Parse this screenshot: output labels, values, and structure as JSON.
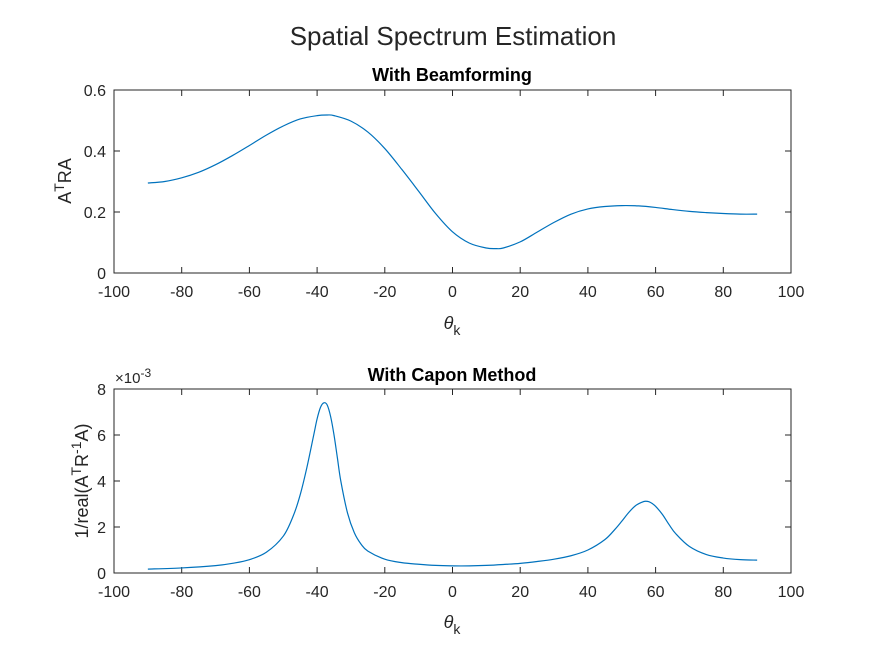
{
  "figure": {
    "title": "Spatial Spectrum Estimation"
  },
  "chart_data": [
    {
      "type": "line",
      "title": "With Beamforming",
      "xlabel": "θ",
      "xlabel_sub": "k",
      "ylabel": "A",
      "ylabel_sup": "T",
      "ylabel_tail": "RA",
      "xlim": [
        -100,
        100
      ],
      "ylim": [
        0,
        0.6
      ],
      "xticks": [
        "-100",
        "-80",
        "-60",
        "-40",
        "-20",
        "0",
        "20",
        "40",
        "60",
        "80",
        "100"
      ],
      "yticks": [
        "0",
        "0.2",
        "0.4",
        "0.6"
      ],
      "ytick_values": [
        0,
        0.2,
        0.4,
        0.6
      ],
      "grid": false,
      "color": "#0072BD",
      "x": [
        -90,
        -85,
        -80,
        -75,
        -70,
        -65,
        -60,
        -55,
        -50,
        -45,
        -40,
        -37,
        -35,
        -30,
        -25,
        -20,
        -15,
        -10,
        -5,
        0,
        5,
        10,
        13,
        15,
        20,
        25,
        30,
        35,
        40,
        45,
        50,
        55,
        60,
        65,
        70,
        75,
        80,
        85,
        90
      ],
      "y": [
        0.295,
        0.3,
        0.312,
        0.33,
        0.355,
        0.385,
        0.418,
        0.452,
        0.482,
        0.505,
        0.516,
        0.518,
        0.516,
        0.498,
        0.462,
        0.408,
        0.34,
        0.268,
        0.195,
        0.135,
        0.098,
        0.082,
        0.08,
        0.082,
        0.102,
        0.134,
        0.166,
        0.193,
        0.21,
        0.218,
        0.221,
        0.22,
        0.215,
        0.208,
        0.202,
        0.198,
        0.195,
        0.193,
        0.193
      ]
    },
    {
      "type": "line",
      "title": "With Capon Method",
      "xlabel": "θ",
      "xlabel_sub": "k",
      "ylabel": "1/real(A",
      "ylabel_sup1": "T",
      "ylabel_mid": "R",
      "ylabel_sup2": "-1",
      "ylabel_tail": "A)",
      "exponent_base": "×10",
      "exponent": "-3",
      "xlim": [
        -100,
        100
      ],
      "ylim": [
        0,
        8
      ],
      "xticks": [
        "-100",
        "-80",
        "-60",
        "-40",
        "-20",
        "0",
        "20",
        "40",
        "60",
        "80",
        "100"
      ],
      "yticks": [
        "0",
        "2",
        "4",
        "6",
        "8"
      ],
      "ytick_values": [
        0,
        2,
        4,
        6,
        8
      ],
      "grid": false,
      "color": "#0072BD",
      "x": [
        -90,
        -80,
        -70,
        -65,
        -60,
        -55,
        -50,
        -47,
        -45,
        -43,
        -41,
        -40,
        -39,
        -38,
        -37,
        -36,
        -35,
        -34,
        -33,
        -31,
        -29,
        -27,
        -25,
        -20,
        -15,
        -10,
        -5,
        0,
        5,
        10,
        15,
        20,
        25,
        30,
        35,
        40,
        45,
        48,
        50,
        52,
        54,
        56,
        57,
        58,
        59,
        60,
        62,
        64,
        66,
        70,
        75,
        80,
        85,
        90
      ],
      "y": [
        0.17,
        0.22,
        0.32,
        0.42,
        0.58,
        0.9,
        1.6,
        2.5,
        3.4,
        4.6,
        6.0,
        6.7,
        7.2,
        7.4,
        7.3,
        6.8,
        6.0,
        5.0,
        4.0,
        2.6,
        1.75,
        1.25,
        0.95,
        0.6,
        0.45,
        0.38,
        0.33,
        0.31,
        0.31,
        0.33,
        0.37,
        0.42,
        0.5,
        0.6,
        0.75,
        1.0,
        1.45,
        1.9,
        2.25,
        2.62,
        2.92,
        3.08,
        3.12,
        3.1,
        3.02,
        2.9,
        2.55,
        2.1,
        1.7,
        1.15,
        0.8,
        0.65,
        0.58,
        0.56
      ]
    }
  ]
}
